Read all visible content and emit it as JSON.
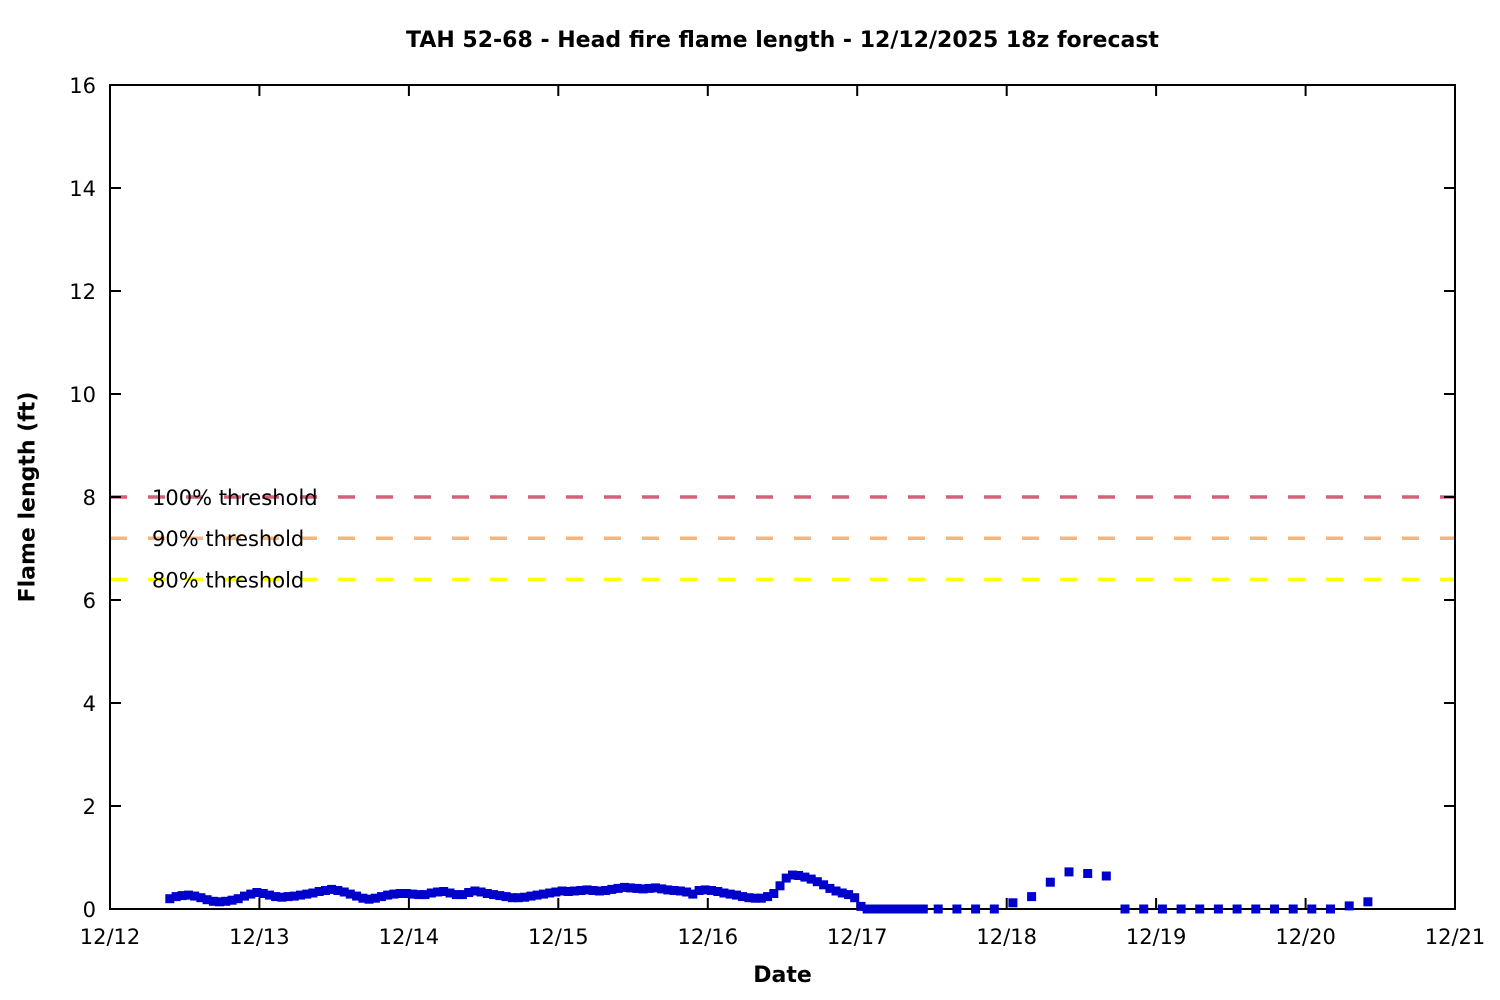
{
  "page": {
    "background": "#ffffff",
    "axis_color": "#000000"
  },
  "chart_data": {
    "type": "scatter",
    "title": "TAH 52-68 - Head fire flame length - 12/12/2025 18z forecast",
    "xlabel": "Date",
    "ylabel": "Flame length (ft)",
    "xlim": [
      0,
      9
    ],
    "ylim": [
      0,
      16
    ],
    "grid": false,
    "x_tick_positions": [
      0,
      1,
      2,
      3,
      4,
      5,
      6,
      7,
      8,
      9
    ],
    "x_tick_labels": [
      "12/12",
      "12/13",
      "12/14",
      "12/15",
      "12/16",
      "12/17",
      "12/18",
      "12/19",
      "12/20",
      "12/21"
    ],
    "y_ticks": [
      0,
      2,
      4,
      6,
      8,
      10,
      12,
      14,
      16
    ],
    "x_unit_note": "days after 12/12",
    "thresholds": [
      {
        "label": "100% threshold",
        "value": 8.0,
        "color": "#d4607a"
      },
      {
        "label": "90% threshold",
        "value": 7.2,
        "color": "#f8b57b"
      },
      {
        "label": "80% threshold",
        "value": 6.4,
        "color": "#ffff00"
      }
    ],
    "series": [
      {
        "name": "Head fire flame length",
        "marker": "square",
        "color": "#0000cd",
        "points": [
          [
            0.4,
            0.2
          ],
          [
            0.442,
            0.24
          ],
          [
            0.483,
            0.26
          ],
          [
            0.525,
            0.27
          ],
          [
            0.567,
            0.25
          ],
          [
            0.608,
            0.22
          ],
          [
            0.65,
            0.18
          ],
          [
            0.692,
            0.15
          ],
          [
            0.733,
            0.14
          ],
          [
            0.775,
            0.15
          ],
          [
            0.817,
            0.17
          ],
          [
            0.858,
            0.2
          ],
          [
            0.9,
            0.25
          ],
          [
            0.942,
            0.29
          ],
          [
            0.983,
            0.32
          ],
          [
            1.025,
            0.3
          ],
          [
            1.067,
            0.27
          ],
          [
            1.108,
            0.24
          ],
          [
            1.15,
            0.23
          ],
          [
            1.192,
            0.24
          ],
          [
            1.233,
            0.25
          ],
          [
            1.275,
            0.27
          ],
          [
            1.317,
            0.29
          ],
          [
            1.358,
            0.31
          ],
          [
            1.4,
            0.34
          ],
          [
            1.442,
            0.36
          ],
          [
            1.483,
            0.38
          ],
          [
            1.525,
            0.36
          ],
          [
            1.567,
            0.33
          ],
          [
            1.608,
            0.29
          ],
          [
            1.65,
            0.25
          ],
          [
            1.692,
            0.21
          ],
          [
            1.733,
            0.19
          ],
          [
            1.775,
            0.21
          ],
          [
            1.817,
            0.24
          ],
          [
            1.858,
            0.27
          ],
          [
            1.9,
            0.29
          ],
          [
            1.942,
            0.3
          ],
          [
            1.983,
            0.3
          ],
          [
            2.025,
            0.29
          ],
          [
            2.067,
            0.28
          ],
          [
            2.108,
            0.28
          ],
          [
            2.15,
            0.31
          ],
          [
            2.192,
            0.33
          ],
          [
            2.233,
            0.34
          ],
          [
            2.275,
            0.31
          ],
          [
            2.317,
            0.28
          ],
          [
            2.358,
            0.28
          ],
          [
            2.4,
            0.32
          ],
          [
            2.442,
            0.35
          ],
          [
            2.483,
            0.33
          ],
          [
            2.525,
            0.3
          ],
          [
            2.567,
            0.28
          ],
          [
            2.608,
            0.26
          ],
          [
            2.65,
            0.24
          ],
          [
            2.692,
            0.22
          ],
          [
            2.733,
            0.22
          ],
          [
            2.775,
            0.23
          ],
          [
            2.817,
            0.25
          ],
          [
            2.858,
            0.27
          ],
          [
            2.9,
            0.29
          ],
          [
            2.942,
            0.31
          ],
          [
            2.983,
            0.33
          ],
          [
            3.025,
            0.35
          ],
          [
            3.067,
            0.34
          ],
          [
            3.108,
            0.35
          ],
          [
            3.15,
            0.36
          ],
          [
            3.192,
            0.37
          ],
          [
            3.233,
            0.36
          ],
          [
            3.275,
            0.35
          ],
          [
            3.317,
            0.36
          ],
          [
            3.358,
            0.38
          ],
          [
            3.4,
            0.4
          ],
          [
            3.442,
            0.42
          ],
          [
            3.483,
            0.41
          ],
          [
            3.525,
            0.4
          ],
          [
            3.567,
            0.39
          ],
          [
            3.608,
            0.4
          ],
          [
            3.65,
            0.41
          ],
          [
            3.692,
            0.39
          ],
          [
            3.733,
            0.37
          ],
          [
            3.775,
            0.36
          ],
          [
            3.817,
            0.35
          ],
          [
            3.858,
            0.33
          ],
          [
            3.9,
            0.29
          ],
          [
            3.942,
            0.36
          ],
          [
            3.983,
            0.37
          ],
          [
            4.025,
            0.36
          ],
          [
            4.067,
            0.34
          ],
          [
            4.108,
            0.31
          ],
          [
            4.15,
            0.29
          ],
          [
            4.192,
            0.27
          ],
          [
            4.233,
            0.24
          ],
          [
            4.275,
            0.22
          ],
          [
            4.317,
            0.21
          ],
          [
            4.358,
            0.21
          ],
          [
            4.4,
            0.24
          ],
          [
            4.442,
            0.3
          ],
          [
            4.483,
            0.45
          ],
          [
            4.525,
            0.6
          ],
          [
            4.567,
            0.66
          ],
          [
            4.608,
            0.65
          ],
          [
            4.65,
            0.62
          ],
          [
            4.692,
            0.58
          ],
          [
            4.733,
            0.53
          ],
          [
            4.775,
            0.47
          ],
          [
            4.817,
            0.4
          ],
          [
            4.858,
            0.35
          ],
          [
            4.9,
            0.31
          ],
          [
            4.942,
            0.28
          ],
          [
            4.983,
            0.22
          ],
          [
            5.025,
            0.05
          ],
          [
            5.067,
            0.0
          ],
          [
            5.108,
            0.0
          ],
          [
            5.15,
            0.0
          ],
          [
            5.192,
            0.0
          ],
          [
            5.233,
            0.0
          ],
          [
            5.275,
            0.0
          ],
          [
            5.317,
            0.0
          ],
          [
            5.358,
            0.0
          ],
          [
            5.4,
            0.0
          ],
          [
            5.442,
            0.0
          ],
          [
            5.542,
            0.0
          ],
          [
            5.667,
            0.0
          ],
          [
            5.792,
            0.0
          ],
          [
            5.917,
            0.0
          ],
          [
            6.042,
            0.12
          ],
          [
            6.167,
            0.24
          ],
          [
            6.292,
            0.52
          ],
          [
            6.417,
            0.72
          ],
          [
            6.542,
            0.69
          ],
          [
            6.667,
            0.64
          ],
          [
            6.792,
            0.0
          ],
          [
            6.917,
            0.0
          ],
          [
            7.042,
            0.0
          ],
          [
            7.167,
            0.0
          ],
          [
            7.292,
            0.0
          ],
          [
            7.417,
            0.0
          ],
          [
            7.542,
            0.0
          ],
          [
            7.667,
            0.0
          ],
          [
            7.792,
            0.0
          ],
          [
            7.917,
            0.0
          ],
          [
            8.042,
            0.0
          ],
          [
            8.167,
            0.0
          ],
          [
            8.292,
            0.06
          ],
          [
            8.417,
            0.14
          ]
        ]
      }
    ],
    "legend_position": "none"
  }
}
